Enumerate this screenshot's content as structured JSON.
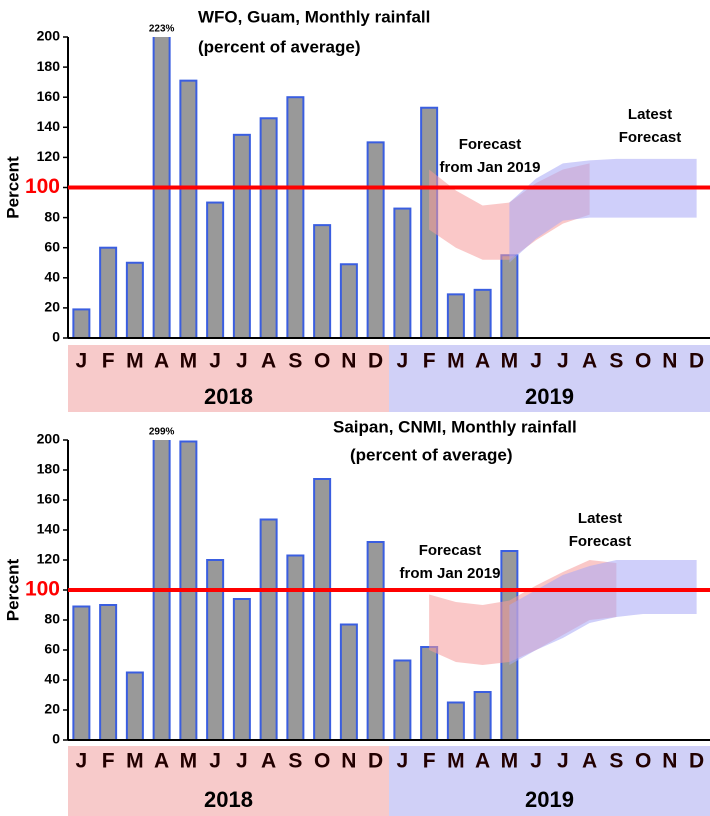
{
  "chart_data": [
    {
      "type": "bar",
      "title": "WFO, Guam, Monthly rainfall",
      "subtitle": "(percent of average)",
      "y_label": "Percent",
      "categories": [
        "J",
        "F",
        "M",
        "A",
        "M",
        "J",
        "J",
        "A",
        "S",
        "O",
        "N",
        "D",
        "J",
        "F",
        "M",
        "A",
        "M",
        "J",
        "J",
        "A",
        "S",
        "O",
        "N",
        "D"
      ],
      "values": [
        19,
        60,
        50,
        223,
        171,
        90,
        135,
        146,
        160,
        75,
        49,
        130,
        86,
        153,
        29,
        32,
        55,
        null,
        null,
        null,
        null,
        null,
        null,
        null
      ],
      "value_labels": [
        null,
        null,
        null,
        "223%",
        null,
        null,
        null,
        null,
        null,
        null,
        null,
        null,
        null,
        null,
        null,
        null,
        null,
        null,
        null,
        null,
        null,
        null,
        null,
        null
      ],
      "color": "#999999",
      "edge_color": "#3a5ee0",
      "ylim": [
        0,
        200
      ],
      "yticks": [
        0,
        20,
        40,
        60,
        80,
        100,
        120,
        140,
        160,
        180,
        200
      ],
      "reference_line": {
        "value": 100,
        "color": "#ff0000"
      },
      "groups": [
        {
          "label": "2018",
          "color": "#f7caca"
        },
        {
          "label": "2019",
          "color": "#d0d0f7"
        }
      ],
      "bands": [
        {
          "label": [
            "Forecast",
            "from Jan 2019"
          ],
          "color": "#f59a9a",
          "upper": [
            null,
            null,
            null,
            null,
            null,
            null,
            null,
            null,
            null,
            null,
            null,
            null,
            null,
            112,
            98,
            88,
            90,
            103,
            112,
            116,
            null,
            null,
            null,
            null
          ],
          "lower": [
            null,
            null,
            null,
            null,
            null,
            null,
            null,
            null,
            null,
            null,
            null,
            null,
            null,
            72,
            60,
            52,
            52,
            65,
            76,
            82,
            null,
            null,
            null,
            null
          ]
        },
        {
          "label": [
            "Latest",
            "Forecast"
          ],
          "color": "#a8a8f5",
          "upper": [
            null,
            null,
            null,
            null,
            null,
            null,
            null,
            null,
            null,
            null,
            null,
            null,
            null,
            null,
            null,
            null,
            90,
            106,
            116,
            118,
            119,
            119,
            119,
            119
          ],
          "lower": [
            null,
            null,
            null,
            null,
            null,
            null,
            null,
            null,
            null,
            null,
            null,
            null,
            null,
            null,
            null,
            null,
            50,
            66,
            78,
            80,
            80,
            80,
            80,
            80
          ]
        }
      ]
    },
    {
      "type": "bar",
      "title": "Saipan, CNMI, Monthly rainfall",
      "subtitle": "(percent of average)",
      "y_label": "Percent",
      "categories": [
        "J",
        "F",
        "M",
        "A",
        "M",
        "J",
        "J",
        "A",
        "S",
        "O",
        "N",
        "D",
        "J",
        "F",
        "M",
        "A",
        "M",
        "J",
        "J",
        "A",
        "S",
        "O",
        "N",
        "D"
      ],
      "values": [
        89,
        90,
        45,
        299,
        199,
        120,
        94,
        147,
        123,
        174,
        77,
        132,
        53,
        62,
        25,
        32,
        126,
        null,
        null,
        null,
        null,
        null,
        null,
        null
      ],
      "value_labels": [
        null,
        null,
        null,
        "299%",
        null,
        null,
        null,
        null,
        null,
        null,
        null,
        null,
        null,
        null,
        null,
        null,
        null,
        null,
        null,
        null,
        null,
        null,
        null,
        null
      ],
      "color": "#999999",
      "edge_color": "#3a5ee0",
      "ylim": [
        0,
        200
      ],
      "yticks": [
        0,
        20,
        40,
        60,
        80,
        100,
        120,
        140,
        160,
        180,
        200
      ],
      "reference_line": {
        "value": 100,
        "color": "#ff0000"
      },
      "groups": [
        {
          "label": "2018",
          "color": "#f7caca"
        },
        {
          "label": "2019",
          "color": "#d0d0f7"
        }
      ],
      "bands": [
        {
          "label": [
            "Forecast",
            "from Jan 2019"
          ],
          "color": "#f59a9a",
          "upper": [
            null,
            null,
            null,
            null,
            null,
            null,
            null,
            null,
            null,
            null,
            null,
            null,
            null,
            97,
            92,
            90,
            93,
            103,
            112,
            120,
            118,
            null,
            null,
            null
          ],
          "lower": [
            null,
            null,
            null,
            null,
            null,
            null,
            null,
            null,
            null,
            null,
            null,
            null,
            null,
            60,
            52,
            50,
            52,
            60,
            70,
            80,
            82,
            null,
            null,
            null
          ]
        },
        {
          "label": [
            "Latest",
            "Forecast"
          ],
          "color": "#a8a8f5",
          "upper": [
            null,
            null,
            null,
            null,
            null,
            null,
            null,
            null,
            null,
            null,
            null,
            null,
            null,
            null,
            null,
            null,
            90,
            100,
            110,
            116,
            120,
            120,
            120,
            120
          ],
          "lower": [
            null,
            null,
            null,
            null,
            null,
            null,
            null,
            null,
            null,
            null,
            null,
            null,
            null,
            null,
            null,
            null,
            50,
            60,
            68,
            78,
            82,
            84,
            84,
            84
          ]
        }
      ]
    }
  ]
}
